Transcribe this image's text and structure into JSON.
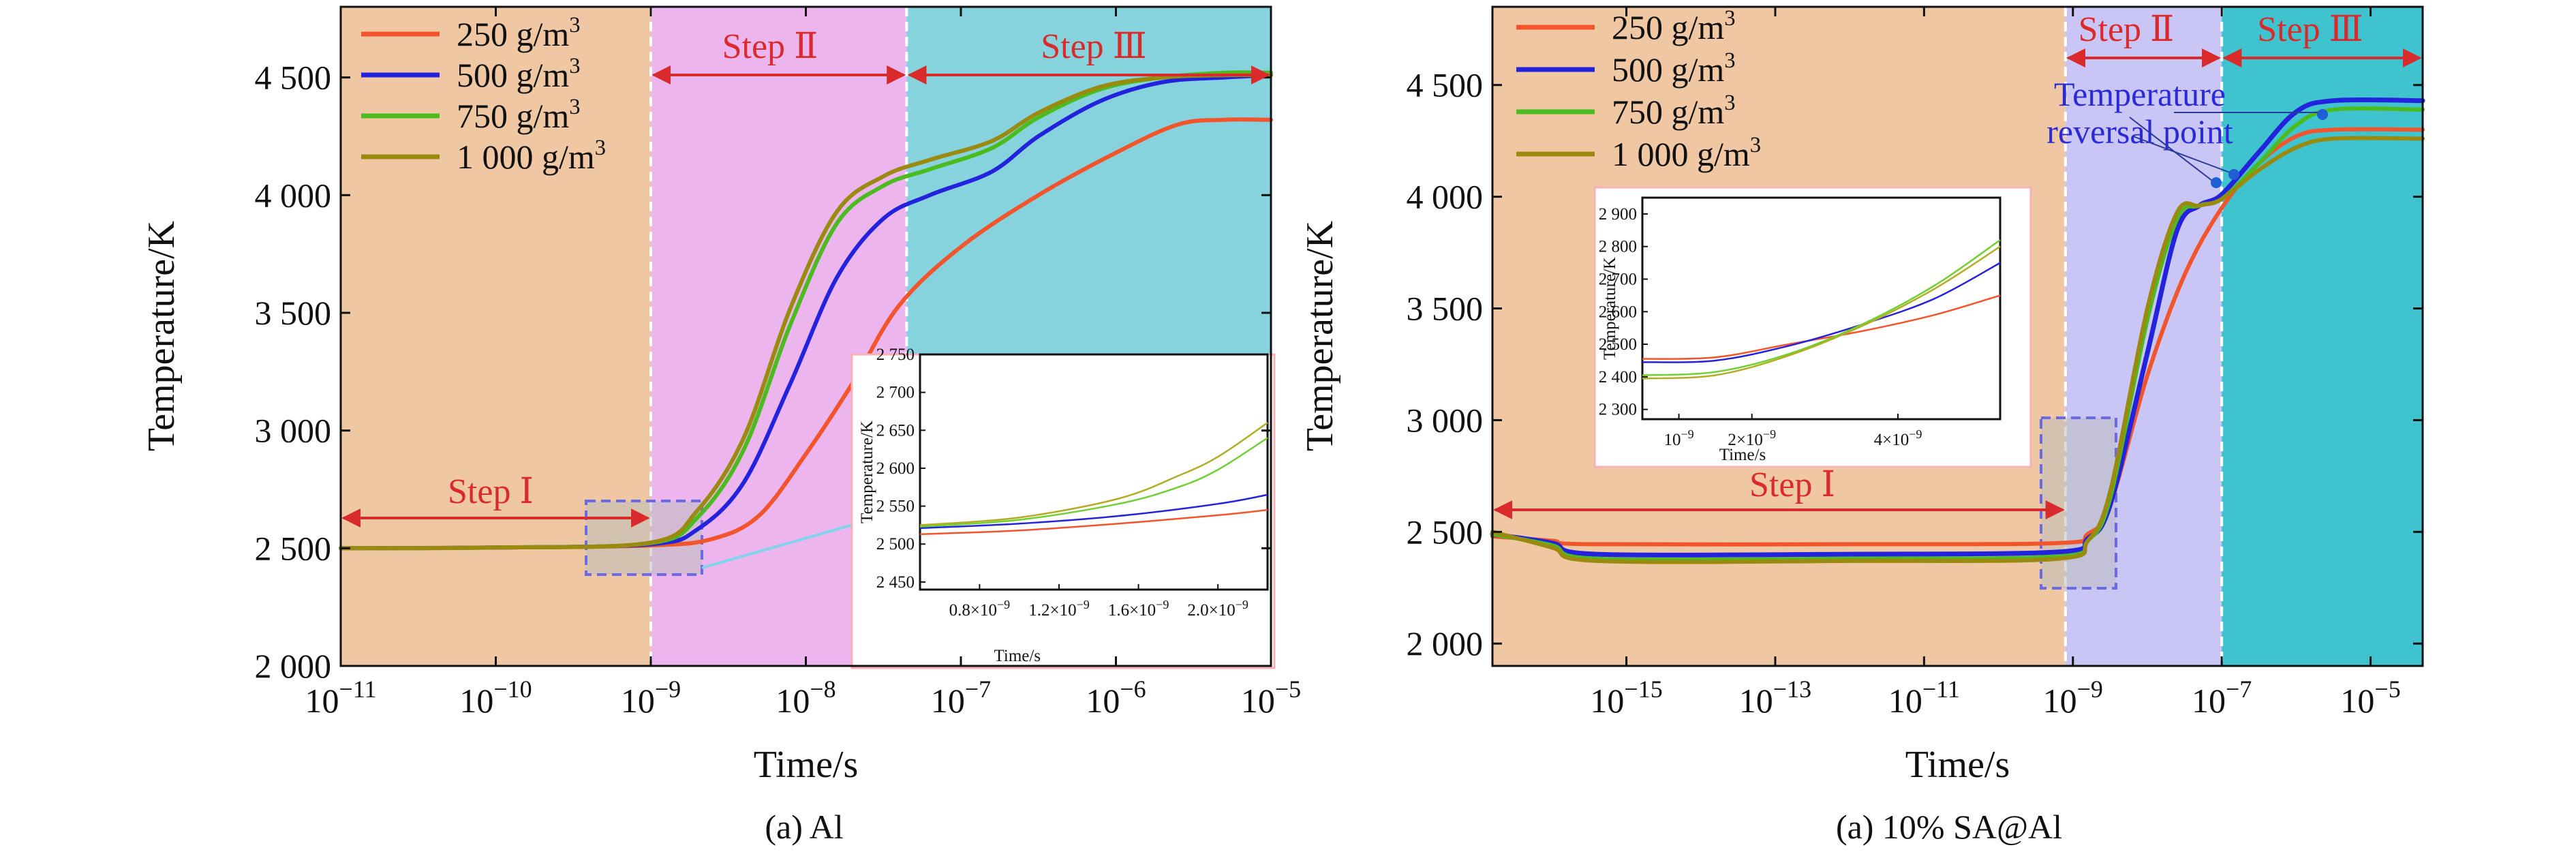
{
  "chart_data": [
    {
      "type": "line",
      "caption": "(a) Al",
      "xlabel": "Time/s",
      "ylabel": "Temperature/K",
      "xscale": "log",
      "xlim_exp": [
        -11,
        -5
      ],
      "x_ticks": [
        {
          "base": "10",
          "exp": "−11"
        },
        {
          "base": "10",
          "exp": "−10"
        },
        {
          "base": "10",
          "exp": "−9"
        },
        {
          "base": "10",
          "exp": "−8"
        },
        {
          "base": "10",
          "exp": "−7"
        },
        {
          "base": "10",
          "exp": "−6"
        },
        {
          "base": "10",
          "exp": "−5"
        }
      ],
      "ylim": [
        2000,
        4800
      ],
      "y_ticks": [
        {
          "v": 2000,
          "l": "2 000"
        },
        {
          "v": 2500,
          "l": "2 500"
        },
        {
          "v": 3000,
          "l": "3 000"
        },
        {
          "v": 3500,
          "l": "3 500"
        },
        {
          "v": 4000,
          "l": "4 000"
        },
        {
          "v": 4500,
          "l": "4 500"
        }
      ],
      "legend_position": "top-left",
      "regions": [
        {
          "label": "Step Ⅰ",
          "from_exp": -11,
          "to_exp": -9,
          "color": "#f0c7a3"
        },
        {
          "label": "Step Ⅱ",
          "from_exp": -9,
          "to_exp": -7.35,
          "color": "#edb5ee"
        },
        {
          "label": "Step Ⅲ",
          "from_exp": -7.35,
          "to_exp": -5,
          "color": "#86d3de"
        }
      ],
      "series": [
        {
          "name": "250 g/m³",
          "color": "#f2552c",
          "width": 6,
          "points": [
            [
              -11,
              2500
            ],
            [
              -10,
              2503
            ],
            [
              -9,
              2512
            ],
            [
              -8.6,
              2540
            ],
            [
              -8.3,
              2640
            ],
            [
              -8,
              2900
            ],
            [
              -7.7,
              3200
            ],
            [
              -7.4,
              3530
            ],
            [
              -7,
              3780
            ],
            [
              -6.5,
              4000
            ],
            [
              -6,
              4180
            ],
            [
              -5.6,
              4300
            ],
            [
              -5.3,
              4320
            ],
            [
              -5,
              4320
            ]
          ]
        },
        {
          "name": "500 g/m³",
          "color": "#2323dd",
          "width": 6,
          "points": [
            [
              -11,
              2500
            ],
            [
              -10,
              2503
            ],
            [
              -9,
              2517
            ],
            [
              -8.7,
              2580
            ],
            [
              -8.4,
              2780
            ],
            [
              -8.1,
              3200
            ],
            [
              -7.8,
              3650
            ],
            [
              -7.5,
              3900
            ],
            [
              -7.2,
              4000
            ],
            [
              -6.8,
              4100
            ],
            [
              -6.5,
              4250
            ],
            [
              -6.1,
              4400
            ],
            [
              -5.7,
              4480
            ],
            [
              -5.3,
              4500
            ],
            [
              -5,
              4510
            ]
          ]
        },
        {
          "name": "750 g/m³",
          "color": "#4cbb20",
          "width": 6,
          "points": [
            [
              -11,
              2500
            ],
            [
              -10,
              2503
            ],
            [
              -9,
              2522
            ],
            [
              -8.7,
              2630
            ],
            [
              -8.4,
              2920
            ],
            [
              -8.1,
              3450
            ],
            [
              -7.8,
              3880
            ],
            [
              -7.5,
              4040
            ],
            [
              -7.2,
              4110
            ],
            [
              -6.8,
              4200
            ],
            [
              -6.5,
              4330
            ],
            [
              -6.1,
              4450
            ],
            [
              -5.7,
              4500
            ],
            [
              -5.3,
              4520
            ],
            [
              -5,
              4520
            ]
          ]
        },
        {
          "name": "1 000 g/m³",
          "color": "#9a8a10",
          "width": 6,
          "points": [
            [
              -11,
              2500
            ],
            [
              -10,
              2503
            ],
            [
              -9,
              2524
            ],
            [
              -8.7,
              2660
            ],
            [
              -8.4,
              2970
            ],
            [
              -8.1,
              3520
            ],
            [
              -7.8,
              3930
            ],
            [
              -7.5,
              4080
            ],
            [
              -7.2,
              4150
            ],
            [
              -6.8,
              4230
            ],
            [
              -6.5,
              4350
            ],
            [
              -6.1,
              4460
            ],
            [
              -5.7,
              4500
            ],
            [
              -5.3,
              4510
            ],
            [
              -5,
              4510
            ]
          ]
        }
      ],
      "inset": {
        "xlabel": "Time/s",
        "ylabel": "Temperature/K",
        "xlim": [
          0.5,
          2.25
        ],
        "x_ticks": [
          {
            "v": 0.8,
            "l": "0.8×10",
            "e": "−9"
          },
          {
            "v": 1.2,
            "l": "1.2×10",
            "e": "−9"
          },
          {
            "v": 1.6,
            "l": "1.6×10",
            "e": "−9"
          },
          {
            "v": 2.0,
            "l": "2.0×10",
            "e": "−9"
          }
        ],
        "ylim": [
          2440,
          2750
        ],
        "y_ticks": [
          {
            "v": 2450,
            "l": "2 450"
          },
          {
            "v": 2500,
            "l": "2 500"
          },
          {
            "v": 2550,
            "l": "2 550"
          },
          {
            "v": 2600,
            "l": "2 600"
          },
          {
            "v": 2650,
            "l": "2 650"
          },
          {
            "v": 2700,
            "l": "2 700"
          },
          {
            "v": 2750,
            "l": "2 750"
          }
        ],
        "series": [
          {
            "color": "#f2552c",
            "points": [
              [
                0.5,
                2513
              ],
              [
                1.0,
                2518
              ],
              [
                1.5,
                2527
              ],
              [
                2.0,
                2538
              ],
              [
                2.25,
                2545
              ]
            ]
          },
          {
            "color": "#2323dd",
            "points": [
              [
                0.5,
                2521
              ],
              [
                1.0,
                2527
              ],
              [
                1.5,
                2537
              ],
              [
                2.0,
                2553
              ],
              [
                2.25,
                2565
              ]
            ]
          },
          {
            "color": "#6fd030",
            "points": [
              [
                0.5,
                2523
              ],
              [
                1.0,
                2532
              ],
              [
                1.5,
                2553
              ],
              [
                1.8,
                2575
              ],
              [
                2.0,
                2598
              ],
              [
                2.25,
                2640
              ]
            ]
          },
          {
            "color": "#b2ad24",
            "points": [
              [
                0.5,
                2525
              ],
              [
                1.0,
                2535
              ],
              [
                1.5,
                2560
              ],
              [
                1.8,
                2590
              ],
              [
                2.0,
                2615
              ],
              [
                2.25,
                2660
              ]
            ]
          }
        ]
      }
    },
    {
      "type": "line",
      "caption": "(a) 10% SA@Al",
      "xlabel": "Time/s",
      "ylabel": "Temperature/K",
      "xscale": "log",
      "xlim_exp": [
        -16.8,
        -4.3
      ],
      "x_ticks": [
        {
          "base": "10",
          "exp": "−15"
        },
        {
          "base": "10",
          "exp": "−13"
        },
        {
          "base": "10",
          "exp": "−11"
        },
        {
          "base": "10",
          "exp": "−9"
        },
        {
          "base": "10",
          "exp": "−7"
        },
        {
          "base": "10",
          "exp": "−5"
        }
      ],
      "ylim": [
        1900,
        4850
      ],
      "y_ticks": [
        {
          "v": 2000,
          "l": "2 000"
        },
        {
          "v": 2500,
          "l": "2 500"
        },
        {
          "v": 3000,
          "l": "3 000"
        },
        {
          "v": 3500,
          "l": "3 500"
        },
        {
          "v": 4000,
          "l": "4 000"
        },
        {
          "v": 4500,
          "l": "4 500"
        }
      ],
      "legend_position": "top-left",
      "regions": [
        {
          "label": "Step Ⅰ",
          "from_exp": -16.8,
          "to_exp": -9.1,
          "color": "#f0c7a3"
        },
        {
          "label": "Step Ⅱ",
          "from_exp": -9.1,
          "to_exp": -7,
          "color": "#c9c6f5"
        },
        {
          "label": "Step Ⅲ",
          "from_exp": -7,
          "to_exp": -4.3,
          "color": "#3fc3ce"
        }
      ],
      "annotation": {
        "lines": [
          "Temperature",
          "reversal point"
        ]
      },
      "series": [
        {
          "name": "250 g/m³",
          "color": "#f2552c",
          "width": 6,
          "points": [
            [
              -16.8,
              2480
            ],
            [
              -16,
              2460
            ],
            [
              -15.5,
              2445
            ],
            [
              -12,
              2445
            ],
            [
              -9.2,
              2450
            ],
            [
              -8.8,
              2490
            ],
            [
              -8.5,
              2620
            ],
            [
              -8,
              3200
            ],
            [
              -7.5,
              3650
            ],
            [
              -7,
              3950
            ],
            [
              -6.5,
              4150
            ],
            [
              -6,
              4270
            ],
            [
              -5.5,
              4300
            ],
            [
              -4.3,
              4300
            ]
          ]
        },
        {
          "name": "500 g/m³",
          "color": "#2323dd",
          "width": 7,
          "points": [
            [
              -16.8,
              2490
            ],
            [
              -16,
              2450
            ],
            [
              -15.4,
              2400
            ],
            [
              -12,
              2400
            ],
            [
              -9.2,
              2410
            ],
            [
              -8.8,
              2470
            ],
            [
              -8.5,
              2620
            ],
            [
              -8,
              3300
            ],
            [
              -7.6,
              3850
            ],
            [
              -7.3,
              3960
            ],
            [
              -7,
              4010
            ],
            [
              -6.5,
              4200
            ],
            [
              -6,
              4380
            ],
            [
              -5.5,
              4430
            ],
            [
              -4.3,
              4430
            ]
          ]
        },
        {
          "name": "750 g/m³",
          "color": "#4cbb20",
          "width": 6,
          "points": [
            [
              -16.8,
              2490
            ],
            [
              -16,
              2440
            ],
            [
              -15.4,
              2380
            ],
            [
              -12,
              2380
            ],
            [
              -9.2,
              2390
            ],
            [
              -8.8,
              2460
            ],
            [
              -8.5,
              2650
            ],
            [
              -8,
              3450
            ],
            [
              -7.6,
              3900
            ],
            [
              -7.3,
              3960
            ],
            [
              -7,
              3990
            ],
            [
              -6.5,
              4150
            ],
            [
              -6,
              4320
            ],
            [
              -5.5,
              4390
            ],
            [
              -4.3,
              4390
            ]
          ]
        },
        {
          "name": "1 000 g/m³",
          "color": "#9a8a10",
          "width": 6,
          "points": [
            [
              -16.8,
              2500
            ],
            [
              -16,
              2430
            ],
            [
              -15.4,
              2370
            ],
            [
              -12,
              2370
            ],
            [
              -9.2,
              2380
            ],
            [
              -8.8,
              2460
            ],
            [
              -8.5,
              2680
            ],
            [
              -8,
              3500
            ],
            [
              -7.6,
              3930
            ],
            [
              -7.3,
              3960
            ],
            [
              -7,
              3990
            ],
            [
              -6.5,
              4120
            ],
            [
              -6,
              4220
            ],
            [
              -5.5,
              4260
            ],
            [
              -4.3,
              4260
            ]
          ]
        }
      ],
      "inset": {
        "xlabel": "Time/s",
        "ylabel": "Temperature/K",
        "xlim": [
          0.5,
          5.4
        ],
        "x_ticks": [
          {
            "v": 1,
            "l": "10",
            "e": "−9"
          },
          {
            "v": 2,
            "l": "2×10",
            "e": "−9"
          },
          {
            "v": 4,
            "l": "4×10",
            "e": "−9"
          }
        ],
        "ylim": [
          2270,
          2950
        ],
        "y_ticks": [
          {
            "v": 2300,
            "l": "2 300"
          },
          {
            "v": 2400,
            "l": "2 400"
          },
          {
            "v": 2500,
            "l": "2 500"
          },
          {
            "v": 2600,
            "l": "2 600"
          },
          {
            "v": 2700,
            "l": "2 700"
          },
          {
            "v": 2800,
            "l": "2 800"
          },
          {
            "v": 2900,
            "l": "2 900"
          }
        ],
        "series": [
          {
            "color": "#f2552c",
            "points": [
              [
                0.5,
                2455
              ],
              [
                1.5,
                2460
              ],
              [
                2.5,
                2500
              ],
              [
                3.5,
                2540
              ],
              [
                4.5,
                2590
              ],
              [
                5.4,
                2650
              ]
            ]
          },
          {
            "color": "#2323dd",
            "points": [
              [
                0.5,
                2445
              ],
              [
                1.5,
                2450
              ],
              [
                2.5,
                2495
              ],
              [
                3.5,
                2560
              ],
              [
                4.5,
                2640
              ],
              [
                5.4,
                2750
              ]
            ]
          },
          {
            "color": "#6fd030",
            "points": [
              [
                0.5,
                2405
              ],
              [
                1.5,
                2415
              ],
              [
                2.5,
                2470
              ],
              [
                3.5,
                2560
              ],
              [
                4.5,
                2680
              ],
              [
                5.4,
                2820
              ]
            ]
          },
          {
            "color": "#b2ad24",
            "points": [
              [
                0.5,
                2395
              ],
              [
                1.5,
                2405
              ],
              [
                2.5,
                2465
              ],
              [
                3.5,
                2555
              ],
              [
                4.5,
                2670
              ],
              [
                5.4,
                2800
              ]
            ]
          }
        ]
      }
    }
  ]
}
